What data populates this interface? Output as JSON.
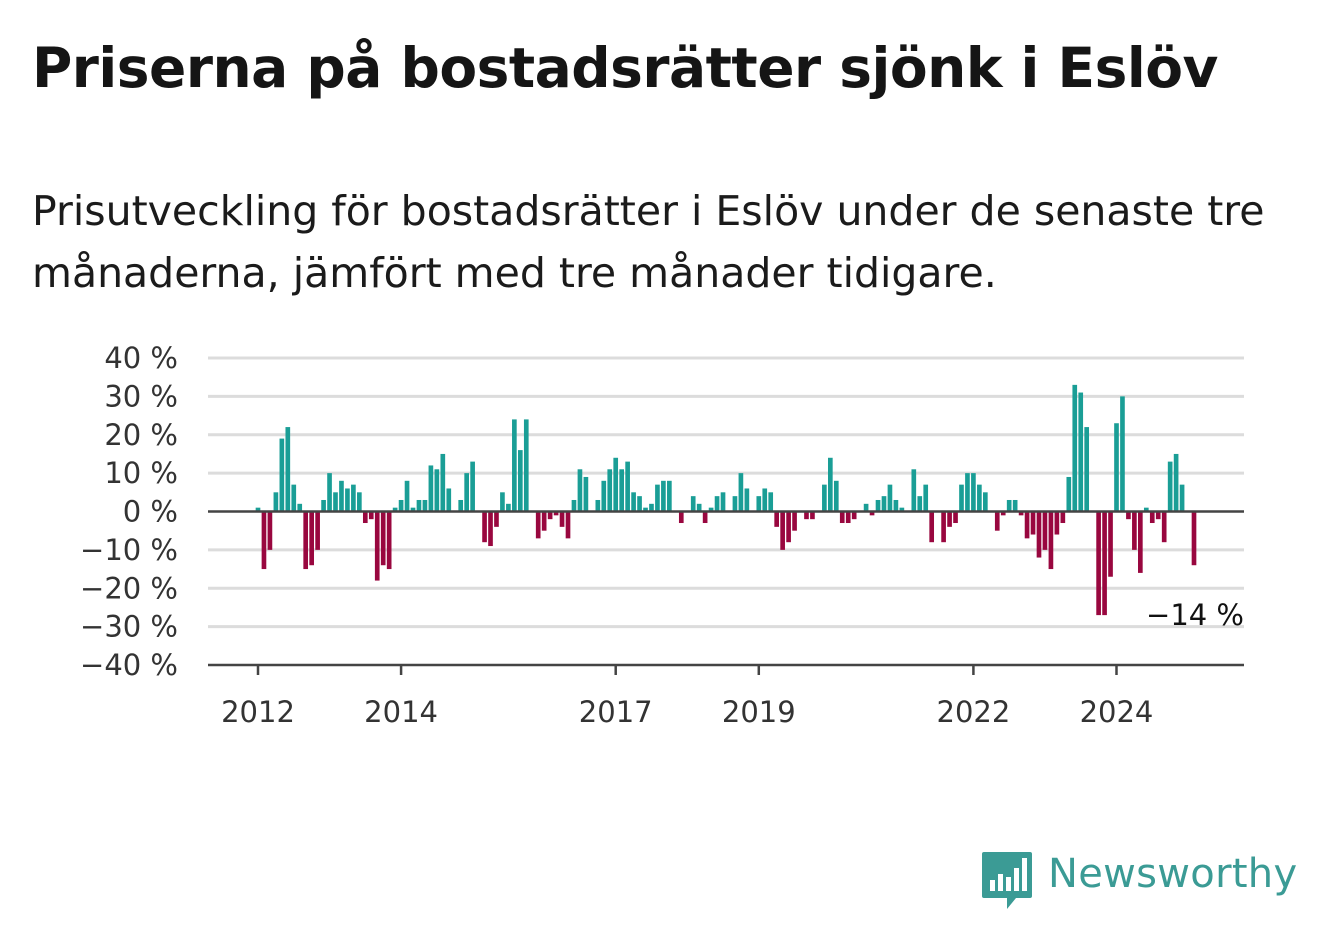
{
  "title": "Priserna på bostadsrätter sjönk i Eslöv",
  "subtitle": "Prisutveckling för bostadsrätter i Eslöv under de senaste tre månaderna, jämfört med tre månader tidigare.",
  "brand": {
    "name": "Newsworthy",
    "icon": "bar-chart-speech-bubble-icon"
  },
  "colors": {
    "positive": "#1a9e96",
    "negative": "#99073f",
    "grid": "#dcdcdc",
    "axis": "#444444",
    "brand": "#3b9b95"
  },
  "chart_data": {
    "type": "bar",
    "title": "Priserna på bostadsrätter sjönk i Eslöv",
    "ylim": [
      -40,
      40
    ],
    "yticks": [
      40,
      30,
      20,
      10,
      0,
      -10,
      -20,
      -30,
      -40
    ],
    "ytick_labels": [
      "40 %",
      "30 %",
      "20 %",
      "10 %",
      "0 %",
      "−10 %",
      "−20 %",
      "−30 %",
      "−40 %"
    ],
    "xtick_labels": [
      "2012",
      "2014",
      "2017",
      "2019",
      "2022",
      "2024"
    ],
    "xtick_positions": [
      2012.0,
      2014.0,
      2017.0,
      2019.0,
      2022.0,
      2024.0
    ],
    "x_start": 2012.0,
    "x_end": 2025.5,
    "grid": true,
    "annotation": {
      "label": "−14 %",
      "value": -14
    },
    "values": [
      1,
      -15,
      -10,
      5,
      19,
      22,
      7,
      2,
      -15,
      -14,
      -10,
      3,
      10,
      5,
      8,
      6,
      7,
      5,
      -3,
      -2,
      -18,
      -14,
      -15,
      1,
      3,
      8,
      1,
      3,
      3,
      12,
      11,
      15,
      6,
      0,
      3,
      10,
      13,
      0,
      -8,
      -9,
      -4,
      5,
      2,
      24,
      16,
      24,
      0,
      -7,
      -5,
      -2,
      -1,
      -4,
      -7,
      3,
      11,
      9,
      0,
      3,
      8,
      11,
      14,
      11,
      13,
      5,
      4,
      1,
      2,
      7,
      8,
      8,
      0,
      -3,
      0,
      4,
      2,
      -3,
      1,
      4,
      5,
      0,
      4,
      10,
      6,
      0,
      4,
      6,
      5,
      -4,
      -10,
      -8,
      -5,
      0,
      -2,
      -2,
      0,
      7,
      14,
      8,
      -3,
      -3,
      -2,
      0,
      2,
      -1,
      3,
      4,
      7,
      3,
      1,
      0,
      11,
      4,
      7,
      -8,
      0,
      -8,
      -4,
      -3,
      7,
      10,
      10,
      7,
      5,
      0,
      -5,
      -1,
      3,
      3,
      -1,
      -7,
      -6,
      -12,
      -10,
      -15,
      -6,
      -3,
      9,
      33,
      31,
      22,
      0,
      -27,
      -27,
      -17,
      23,
      30,
      -2,
      -10,
      -16,
      1,
      -3,
      -2,
      -8,
      13,
      15,
      7,
      0,
      -14
    ]
  }
}
